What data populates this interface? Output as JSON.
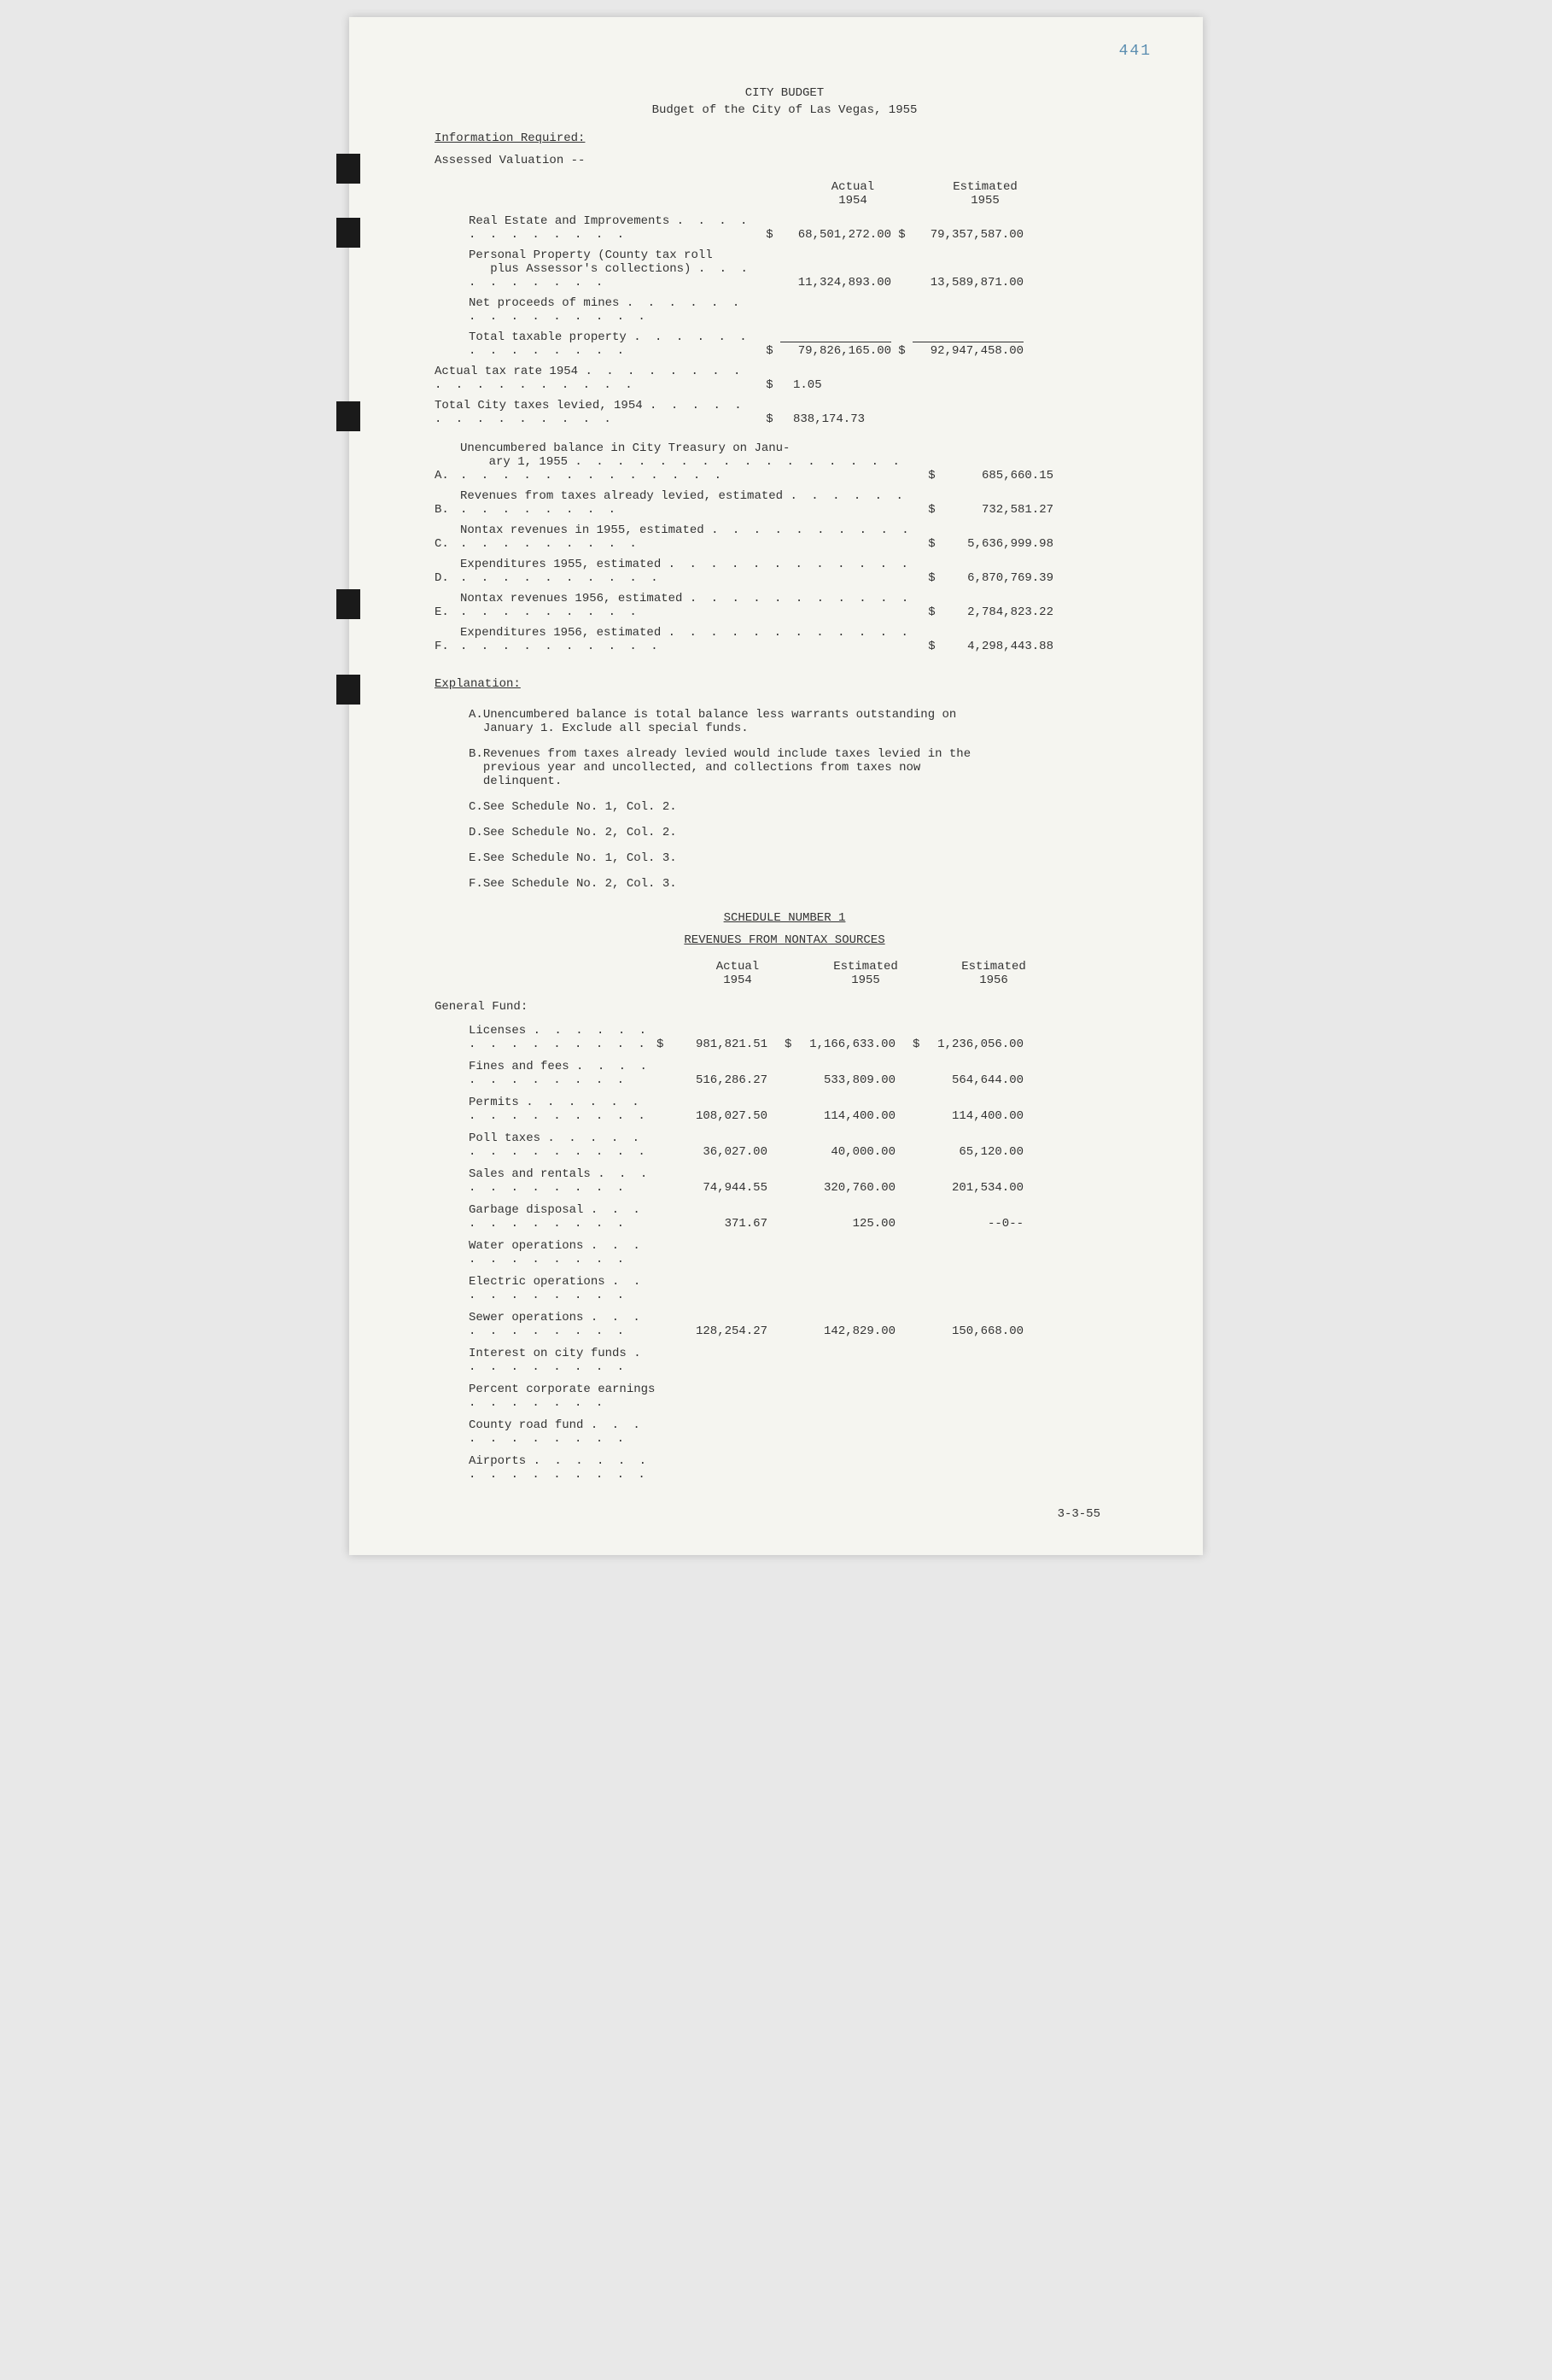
{
  "page_number": "441",
  "title": {
    "line1": "CITY BUDGET",
    "line2": "Budget of the City of Las Vegas, 1955"
  },
  "info_required_header": "Information Required:",
  "assessed_valuation_header": "Assessed Valuation --",
  "valuation_headers": {
    "col1": "Actual",
    "col1_year": "1954",
    "col2": "Estimated",
    "col2_year": "1955"
  },
  "valuation_rows": [
    {
      "label": "Real Estate and Improvements",
      "dots": ". . . . . . . . . . . .",
      "d1": "$",
      "v1954": "68,501,272.00",
      "d2": "$",
      "v1955": "79,357,587.00"
    },
    {
      "label": "Personal Property (County tax roll",
      "label2": "plus Assessor's collections)",
      "dots": ". . . . . . . . . .",
      "d1": "",
      "v1954": "11,324,893.00",
      "d2": "",
      "v1955": "13,589,871.00"
    },
    {
      "label": "Net proceeds of mines",
      "dots": ". . . . . . . . . . . . . . .",
      "d1": "",
      "v1954": "",
      "d2": "",
      "v1955": ""
    },
    {
      "label": "Total taxable property",
      "dots": ". . . . . . . . . . . . . .",
      "d1": "$",
      "v1954": "79,826,165.00",
      "d2": "$",
      "v1955": "92,947,458.00",
      "total": true
    }
  ],
  "tax_rows": [
    {
      "label": "Actual tax rate 1954",
      "dots": ". . . . . . . . . . . . . . . . . .",
      "d1": "$",
      "v": "1.05"
    },
    {
      "label": "Total City taxes levied, 1954",
      "dots": ". . . . . . . . . . . . . .",
      "d1": "$",
      "v": "838,174.73"
    }
  ],
  "summary_items": [
    {
      "letter": "A.",
      "label": "Unencumbered balance in City Treasury on Janu-",
      "label2": "ary 1, 1955",
      "dots": ". . . . . . . . . . . . . . . . . . . . . . . . . . . . .",
      "d": "$",
      "v": "685,660.15"
    },
    {
      "letter": "B.",
      "label": "Revenues from taxes already levied, estimated",
      "dots": ". . . . . . . . . . . . . .",
      "d": "$",
      "v": "732,581.27"
    },
    {
      "letter": "C.",
      "label": "Nontax revenues in 1955, estimated",
      "dots": ". . . . . . . . . . . . . . . . . . .",
      "d": "$",
      "v": "5,636,999.98"
    },
    {
      "letter": "D.",
      "label": "Expenditures 1955, estimated",
      "dots": ". . . . . . . . . . . . . . . . . . . . . .",
      "d": "$",
      "v": "6,870,769.39"
    },
    {
      "letter": "E.",
      "label": "Nontax revenues 1956, estimated",
      "dots": ". . . . . . . . . . . . . . . . . . . .",
      "d": "$",
      "v": "2,784,823.22"
    },
    {
      "letter": "F.",
      "label": "Expenditures 1956, estimated",
      "dots": ". . . . . . . . . . . . . . . . . . . . . .",
      "d": "$",
      "v": "4,298,443.88"
    }
  ],
  "explanation_header": "Explanation:",
  "explanations": [
    {
      "letter": "A.",
      "text": "Unencumbered balance is total balance less warrants outstanding on January 1.  Exclude all special funds."
    },
    {
      "letter": "B.",
      "text": "Revenues from taxes already levied would include taxes levied in the previous year and uncollected, and collections from taxes now delinquent."
    },
    {
      "letter": "C.",
      "text": "See Schedule No. 1, Col. 2."
    },
    {
      "letter": "D.",
      "text": "See Schedule No. 2, Col. 2."
    },
    {
      "letter": "E.",
      "text": "See Schedule No. 1, Col. 3."
    },
    {
      "letter": "F.",
      "text": "See Schedule No. 2, Col. 3."
    }
  ],
  "schedule": {
    "title": "SCHEDULE NUMBER 1",
    "subtitle": "REVENUES FROM NONTAX SOURCES",
    "headers": {
      "c1": "Actual",
      "c1y": "1954",
      "c2": "Estimated",
      "c2y": "1955",
      "c3": "Estimated",
      "c3y": "1956"
    },
    "group_header": "General Fund:",
    "rows": [
      {
        "label": "Licenses",
        "dots": ". . . . . . . . . . . . . . .",
        "d1": "$",
        "v1": "981,821.51",
        "d2": "$",
        "v2": "1,166,633.00",
        "d3": "$",
        "v3": "1,236,056.00"
      },
      {
        "label": "Fines and fees",
        "dots": ". . . . . . . . . . . .",
        "d1": "",
        "v1": "516,286.27",
        "d2": "",
        "v2": "533,809.00",
        "d3": "",
        "v3": "564,644.00"
      },
      {
        "label": "Permits",
        "dots": ". . . . . . . . . . . . . . .",
        "d1": "",
        "v1": "108,027.50",
        "d2": "",
        "v2": "114,400.00",
        "d3": "",
        "v3": "114,400.00"
      },
      {
        "label": "Poll taxes",
        "dots": ". . . . . . . . . . . . . .",
        "d1": "",
        "v1": "36,027.00",
        "d2": "",
        "v2": "40,000.00",
        "d3": "",
        "v3": "65,120.00"
      },
      {
        "label": "Sales and rentals",
        "dots": ". . . . . . . . . . .",
        "d1": "",
        "v1": "74,944.55",
        "d2": "",
        "v2": "320,760.00",
        "d3": "",
        "v3": "201,534.00"
      },
      {
        "label": "Garbage disposal",
        "dots": ". . . . . . . . . . .",
        "d1": "",
        "v1": "371.67",
        "d2": "",
        "v2": "125.00",
        "d3": "",
        "v3": "--0--"
      },
      {
        "label": "Water operations",
        "dots": ". . . . . . . . . . .",
        "d1": "",
        "v1": "",
        "d2": "",
        "v2": "",
        "d3": "",
        "v3": ""
      },
      {
        "label": "Electric operations",
        "dots": ". . . . . . . . . .",
        "d1": "",
        "v1": "",
        "d2": "",
        "v2": "",
        "d3": "",
        "v3": ""
      },
      {
        "label": "Sewer operations",
        "dots": ". . . . . . . . . . .",
        "d1": "",
        "v1": "128,254.27",
        "d2": "",
        "v2": "142,829.00",
        "d3": "",
        "v3": "150,668.00"
      },
      {
        "label": "Interest on city funds",
        "dots": ". . . . . . . . .",
        "d1": "",
        "v1": "",
        "d2": "",
        "v2": "",
        "d3": "",
        "v3": ""
      },
      {
        "label": "Percent corporate earnings",
        "dots": ". . . . . . .",
        "d1": "",
        "v1": "",
        "d2": "",
        "v2": "",
        "d3": "",
        "v3": ""
      },
      {
        "label": "County road fund",
        "dots": ". . . . . . . . . . .",
        "d1": "",
        "v1": "",
        "d2": "",
        "v2": "",
        "d3": "",
        "v3": ""
      },
      {
        "label": "Airports",
        "dots": ". . . . . . . . . . . . . . .",
        "d1": "",
        "v1": "",
        "d2": "",
        "v2": "",
        "d3": "",
        "v3": ""
      }
    ]
  },
  "footer_date": "3-3-55",
  "punch_holes": [
    160,
    235,
    450,
    670,
    770
  ]
}
